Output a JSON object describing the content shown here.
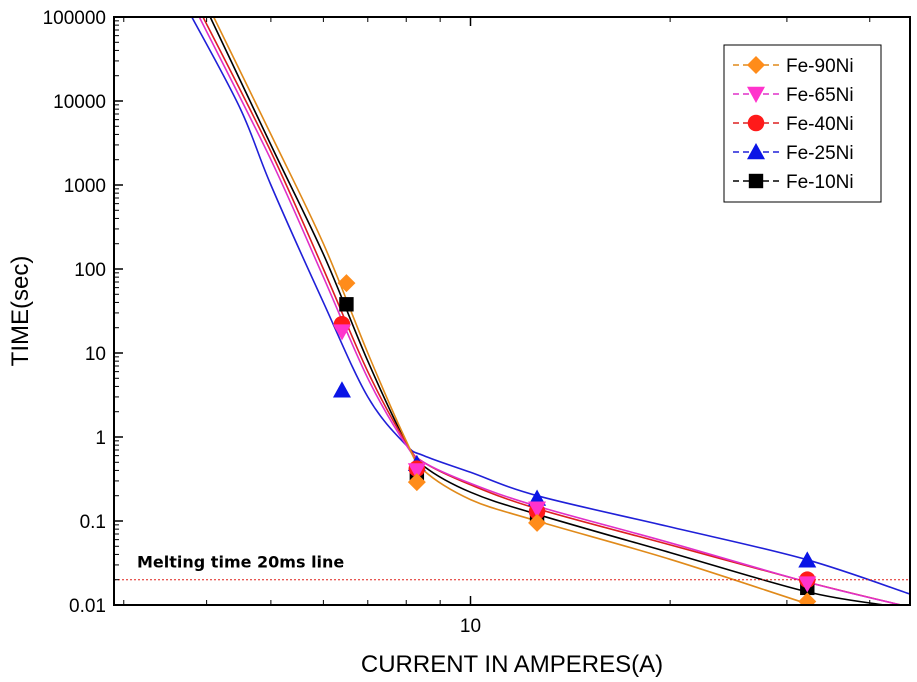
{
  "chart_data": {
    "type": "scatter",
    "title": "",
    "xlabel": "CURRENT IN AMPERES(A)",
    "ylabel": "TIME(sec)",
    "x_scale": "log",
    "y_scale": "log",
    "xlim": [
      2.9,
      46
    ],
    "ylim": [
      0.01,
      100000
    ],
    "x_ticks": [
      {
        "value": 10,
        "label": "10"
      }
    ],
    "x_minor_ticks": [
      3,
      4,
      5,
      6,
      7,
      8,
      9,
      20,
      30,
      40
    ],
    "y_ticks": [
      {
        "value": 0.01,
        "label": "0.01"
      },
      {
        "value": 0.1,
        "label": "0.1"
      },
      {
        "value": 1,
        "label": "1"
      },
      {
        "value": 10,
        "label": "10"
      },
      {
        "value": 100,
        "label": "100"
      },
      {
        "value": 1000,
        "label": "1000"
      },
      {
        "value": 10000,
        "label": "10000"
      },
      {
        "value": 100000,
        "label": "100000"
      }
    ],
    "grid": false,
    "legend_position": "top-right",
    "reference_line": {
      "y": 0.02,
      "color": "#e0201a",
      "label": "Melting time 20ms line"
    },
    "series": [
      {
        "name": "Fe-90Ni",
        "color": "#ff8c1a",
        "line_color": "#e08a1a",
        "marker": "diamond",
        "points": [
          [
            6.5,
            68
          ],
          [
            8.3,
            0.29
          ],
          [
            12.6,
            0.095
          ],
          [
            32.2,
            0.011
          ]
        ],
        "fit": [
          [
            4.1,
            100000
          ],
          [
            5.0,
            4000
          ],
          [
            6.0,
            200
          ],
          [
            7.0,
            10
          ],
          [
            8.0,
            0.9
          ],
          [
            8.5,
            0.4
          ],
          [
            10.0,
            0.18
          ],
          [
            12.6,
            0.1
          ],
          [
            20.0,
            0.035
          ],
          [
            32.0,
            0.0105
          ],
          [
            33.0,
            0.01
          ]
        ]
      },
      {
        "name": "Fe-65Ni",
        "color": "#ff33cc",
        "line_color": "#e030c8",
        "marker": "triangle-down",
        "points": [
          [
            6.4,
            18
          ],
          [
            8.3,
            0.4
          ],
          [
            12.6,
            0.14
          ],
          [
            32.2,
            0.018
          ]
        ],
        "fit": [
          [
            3.9,
            100000
          ],
          [
            5.0,
            2000
          ],
          [
            6.0,
            80
          ],
          [
            7.0,
            5
          ],
          [
            8.0,
            0.8
          ],
          [
            8.5,
            0.5
          ],
          [
            10.0,
            0.28
          ],
          [
            12.6,
            0.15
          ],
          [
            20.0,
            0.055
          ],
          [
            32.0,
            0.019
          ],
          [
            45.0,
            0.0098
          ]
        ]
      },
      {
        "name": "Fe-40Ni",
        "color": "#ff1a1a",
        "line_color": "#dd2020",
        "marker": "circle",
        "points": [
          [
            6.4,
            22
          ],
          [
            8.3,
            0.42
          ],
          [
            12.6,
            0.13
          ],
          [
            32.2,
            0.02
          ]
        ],
        "fit": [
          [
            3.95,
            100000
          ],
          [
            5.0,
            2500
          ],
          [
            6.0,
            100
          ],
          [
            7.0,
            6
          ],
          [
            8.0,
            0.85
          ],
          [
            8.5,
            0.5
          ],
          [
            10.0,
            0.27
          ],
          [
            12.6,
            0.14
          ],
          [
            20.0,
            0.052
          ],
          [
            32.0,
            0.019
          ],
          [
            45.0,
            0.0098
          ]
        ]
      },
      {
        "name": "Fe-25Ni",
        "color": "#0a14e6",
        "line_color": "#2020d8",
        "marker": "triangle-up",
        "points": [
          [
            6.4,
            3.6
          ],
          [
            8.3,
            0.48
          ],
          [
            12.6,
            0.185
          ],
          [
            32.2,
            0.034
          ]
        ],
        "fit": [
          [
            3.8,
            100000
          ],
          [
            4.5,
            8000
          ],
          [
            5.0,
            1000
          ],
          [
            6.0,
            40
          ],
          [
            7.0,
            3
          ],
          [
            8.0,
            0.8
          ],
          [
            8.5,
            0.6
          ],
          [
            10.0,
            0.38
          ],
          [
            12.6,
            0.2
          ],
          [
            20.0,
            0.085
          ],
          [
            32.0,
            0.035
          ],
          [
            46.0,
            0.0135
          ]
        ]
      },
      {
        "name": "Fe-10Ni",
        "color": "#000000",
        "line_color": "#000000",
        "marker": "square",
        "points": [
          [
            6.5,
            38
          ],
          [
            8.3,
            0.35
          ],
          [
            12.6,
            0.12
          ],
          [
            32.2,
            0.016
          ]
        ],
        "fit": [
          [
            4.05,
            100000
          ],
          [
            5.0,
            3000
          ],
          [
            6.0,
            150
          ],
          [
            7.0,
            8
          ],
          [
            8.0,
            0.85
          ],
          [
            8.5,
            0.45
          ],
          [
            10.0,
            0.22
          ],
          [
            12.6,
            0.12
          ],
          [
            20.0,
            0.042
          ],
          [
            32.0,
            0.0145
          ],
          [
            42.0,
            0.01
          ]
        ]
      }
    ]
  }
}
